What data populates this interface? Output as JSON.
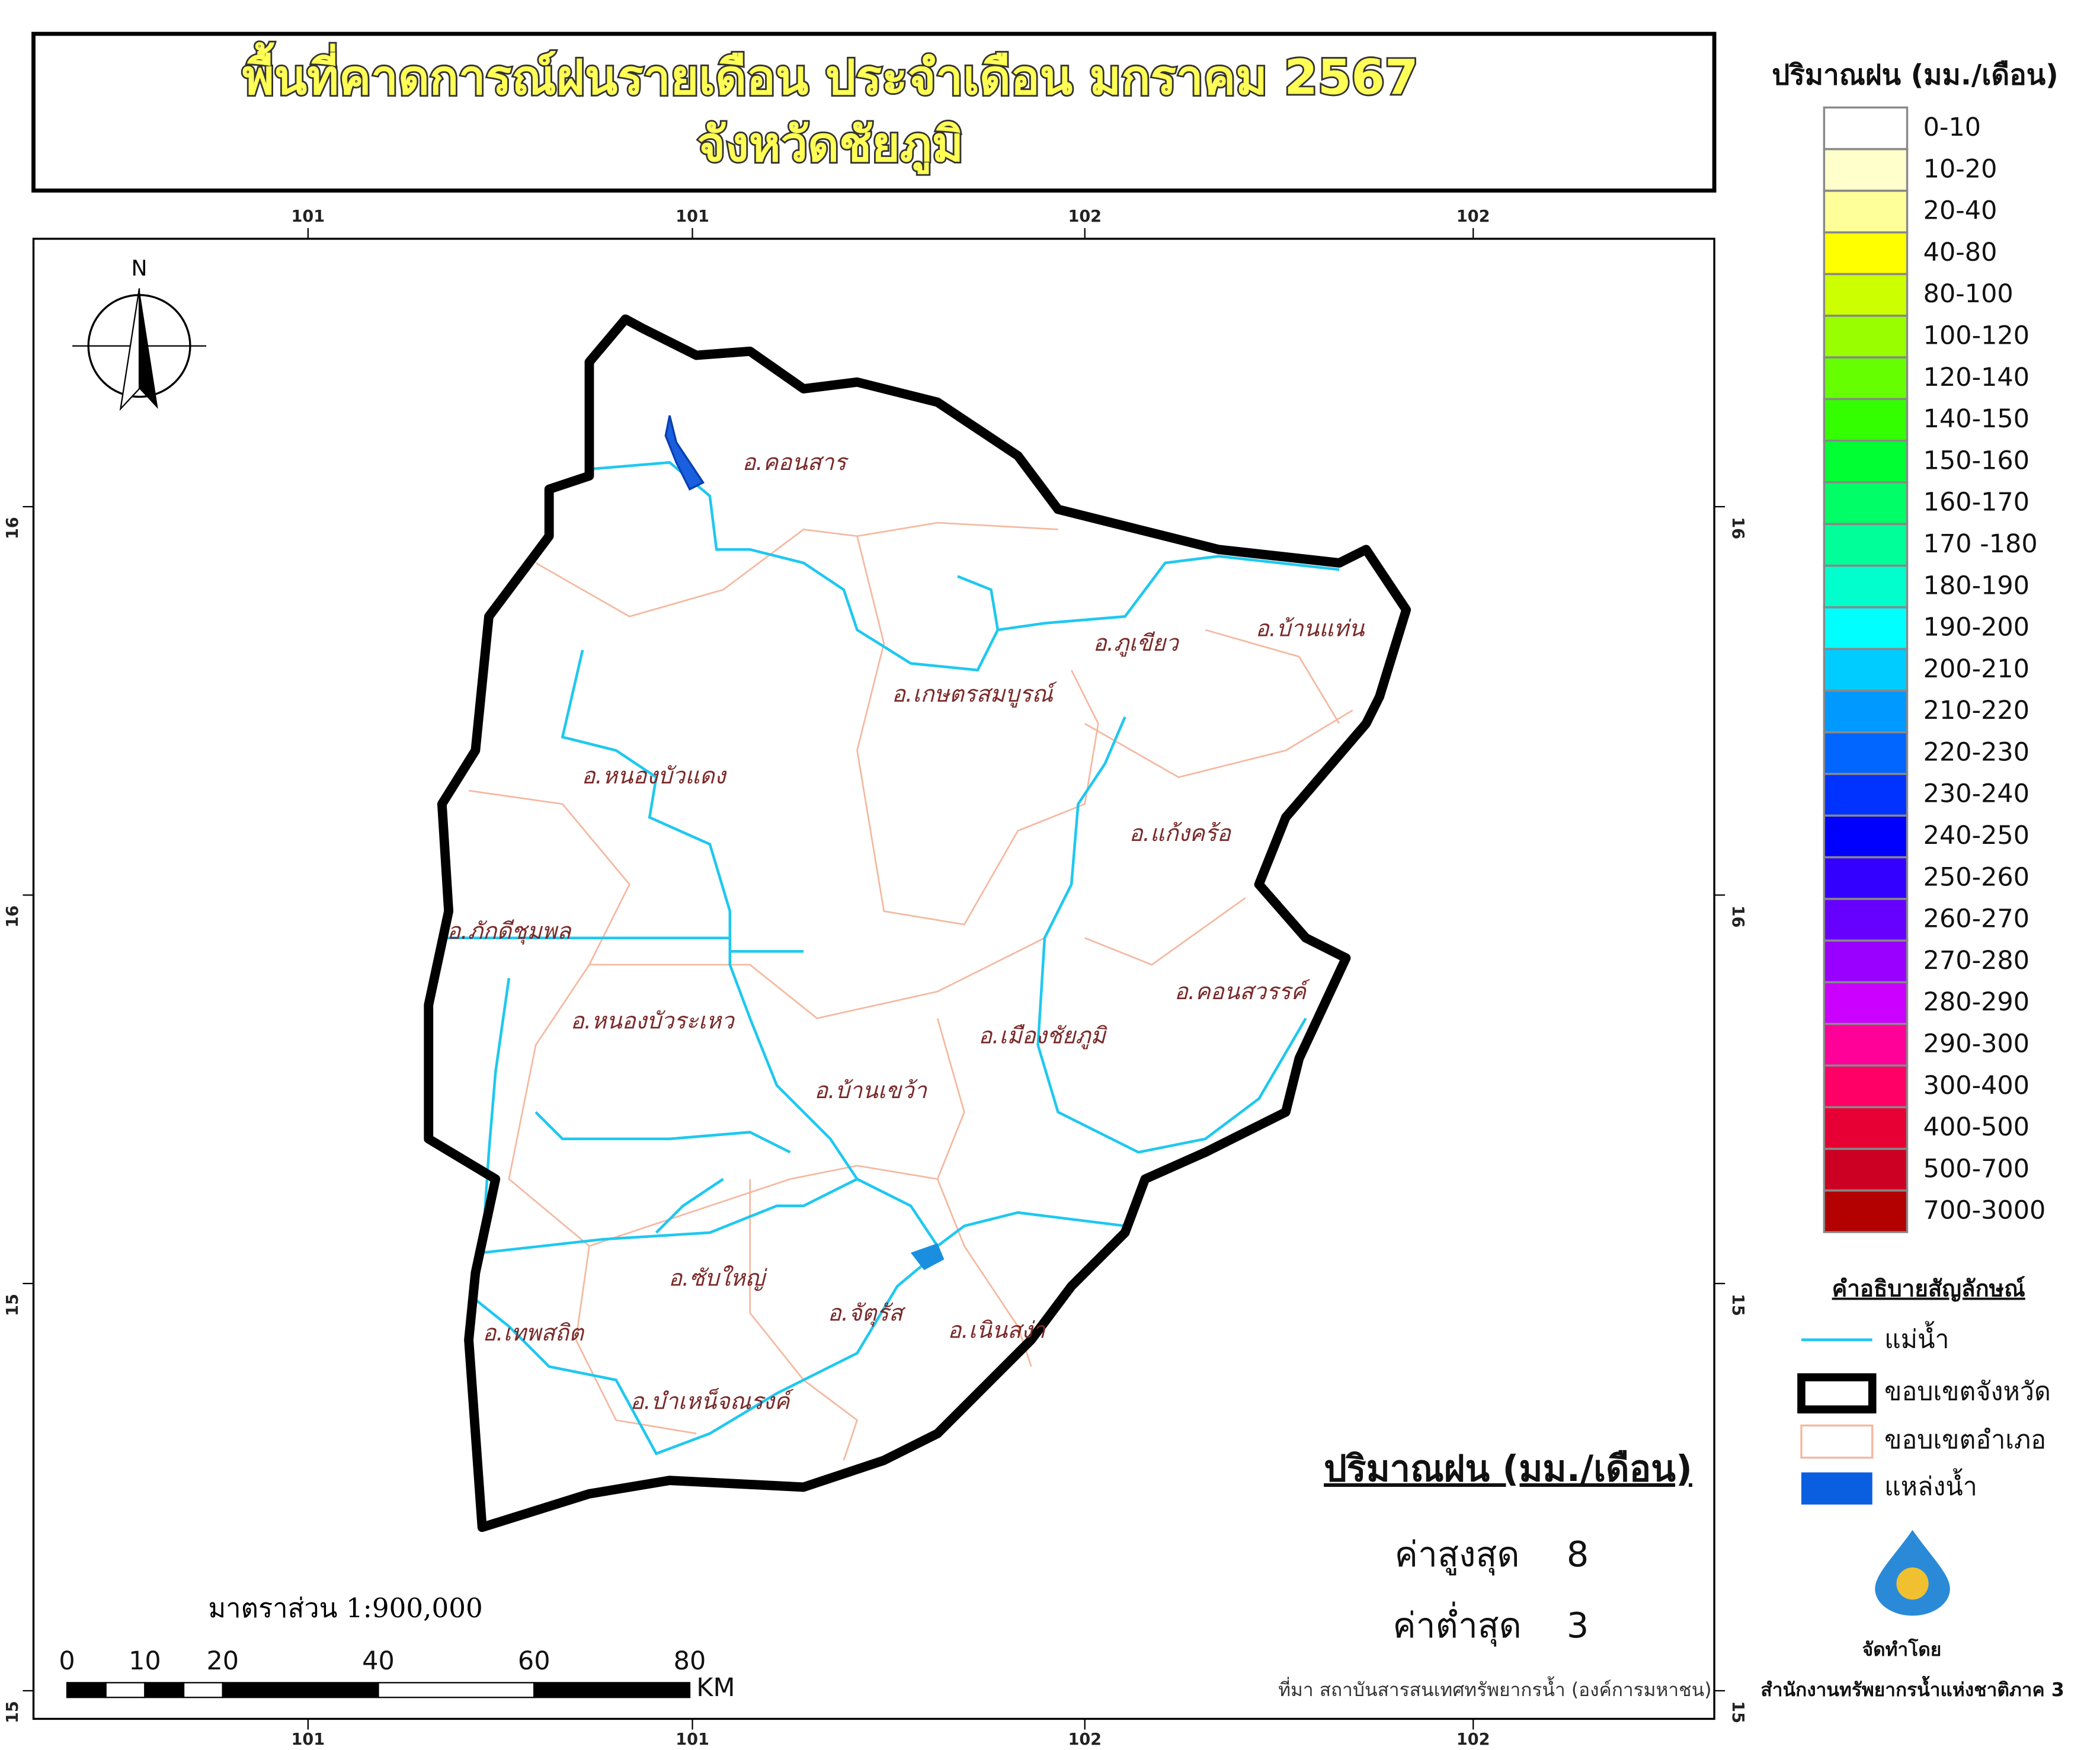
{
  "title": [
    "พื้นที่คาดการณ์ฝนรายเดือน ประจำเดือน มกราคม 2567",
    "จังหวัดชัยภูมิ"
  ],
  "legend": {
    "title": "ปริมาณฝน (มม./เดือน)",
    "classes": [
      {
        "label": "0-10",
        "color": "#ffffff"
      },
      {
        "label": "10-20",
        "color": "#ffffcc"
      },
      {
        "label": "20-40",
        "color": "#ffff99"
      },
      {
        "label": "40-80",
        "color": "#ffff00"
      },
      {
        "label": "80-100",
        "color": "#ccff00"
      },
      {
        "label": "100-120",
        "color": "#99ff00"
      },
      {
        "label": "120-140",
        "color": "#66ff00"
      },
      {
        "label": "140-150",
        "color": "#33ff00"
      },
      {
        "label": "150-160",
        "color": "#00ff33"
      },
      {
        "label": "160-170",
        "color": "#00ff66"
      },
      {
        "label": "170 -180",
        "color": "#00ff99"
      },
      {
        "label": "180-190",
        "color": "#00ffcc"
      },
      {
        "label": "190-200",
        "color": "#00ffff"
      },
      {
        "label": "200-210",
        "color": "#00ccff"
      },
      {
        "label": "210-220",
        "color": "#0099ff"
      },
      {
        "label": "220-230",
        "color": "#0066ff"
      },
      {
        "label": "230-240",
        "color": "#0033ff"
      },
      {
        "label": "240-250",
        "color": "#0000ff"
      },
      {
        "label": "250-260",
        "color": "#3300ff"
      },
      {
        "label": "260-270",
        "color": "#6600ff"
      },
      {
        "label": "270-280",
        "color": "#9900ff"
      },
      {
        "label": "280-290",
        "color": "#cc00ff"
      },
      {
        "label": "290-300",
        "color": "#ff0099"
      },
      {
        "label": "300-400",
        "color": "#ff0066"
      },
      {
        "label": "400-500",
        "color": "#e60033"
      },
      {
        "label": "500-700",
        "color": "#cc0022"
      },
      {
        "label": "700-3000",
        "color": "#b30000"
      }
    ]
  },
  "symbols": {
    "title": "คำอธิบายสัญลักษณ์",
    "items": [
      "แม่น้ำ",
      "ขอบเขตจังหวัด",
      "ขอบเขตอำเภอ",
      "แหล่งน้ำ"
    ]
  },
  "districts": [
    "อ.คอนสาร",
    "อ.ภูเขียว",
    "อ.บ้านแท่น",
    "อ.เกษตรสมบูรณ์",
    "อ.หนองบัวแดง",
    "อ.แก้งคร้อ",
    "อ.ภักดีชุมพล",
    "อ.คอนสวรรค์",
    "อ.หนองบัวระเหว",
    "อ.เมืองชัยภูมิ",
    "อ.บ้านเขว้า",
    "อ.ซับใหญ่",
    "อ.จัตุรัส",
    "อ.เนินสง่า",
    "อ.เทพสถิต",
    "อ.บำเหน็จณรงค์"
  ],
  "coords": {
    "top": [
      "101",
      "101",
      "102",
      "102"
    ],
    "bottom": [
      "101",
      "101",
      "102",
      "102"
    ],
    "left": [
      "16",
      "16",
      "15",
      "15"
    ],
    "right": [
      "16",
      "16",
      "15",
      "15"
    ]
  },
  "north": "N",
  "stats": {
    "title": "ปริมาณฝน (มม./เดือน)",
    "max_label": "ค่าสูงสุด",
    "max": 8,
    "min_label": "ค่าต่ำสุด",
    "min": 3
  },
  "scale": {
    "label": "มาตราส่วน 1:900,000",
    "ticks": [
      0,
      10,
      20,
      40,
      60,
      80
    ],
    "unit": "KM"
  },
  "source": "ที่มา  สถาบันสารสนเทศทรัพยากรน้ำ (องค์การมหาชน)",
  "producer": {
    "label": "จัดทำโดย",
    "name": "สำนักงานทรัพยากรน้ำแห่งชาติภาค 3"
  }
}
